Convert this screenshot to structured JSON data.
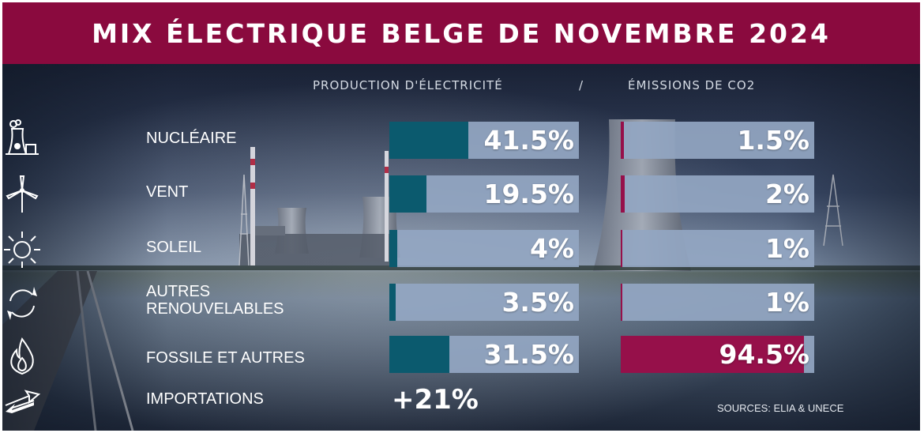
{
  "title": "MIX ÉLECTRIQUE BELGE DE NOVEMBRE 2024",
  "headers": {
    "production": "PRODUCTION D'ÉLECTRICITÉ",
    "separator": "/",
    "emissions": "ÉMISSIONS DE CO2"
  },
  "colors": {
    "banner": "#8a0a3e",
    "production_fill": "#0b5a6e",
    "emissions_fill": "#96104a",
    "bar_track": "#92a6c2"
  },
  "chart_data": {
    "type": "bar",
    "categories": [
      "NUCLÉAIRE",
      "VENT",
      "SOLEIL",
      "AUTRES RENOUVELABLES",
      "FOSSILE ET AUTRES"
    ],
    "category_icons": [
      "nuclear-plant-icon",
      "wind-turbine-icon",
      "sun-icon",
      "recycle-icon",
      "flame-icon"
    ],
    "series": [
      {
        "name": "PRODUCTION D'ÉLECTRICITÉ",
        "values": [
          41.5,
          19.5,
          4,
          3.5,
          31.5
        ],
        "labels": [
          "41.5%",
          "19.5%",
          "4%",
          "3.5%",
          "31.5%"
        ]
      },
      {
        "name": "ÉMISSIONS DE CO2",
        "values": [
          1.5,
          2,
          1,
          1,
          94.5
        ],
        "labels": [
          "1.5%",
          "2%",
          "1%",
          "1%",
          "94.5%"
        ]
      }
    ],
    "xlim": [
      0,
      100
    ]
  },
  "imports": {
    "label": "IMPORTATIONS",
    "value": "+21%",
    "icon": "exchange-arrows-icon"
  },
  "sources": "SOURCES: ELIA & UNECE"
}
